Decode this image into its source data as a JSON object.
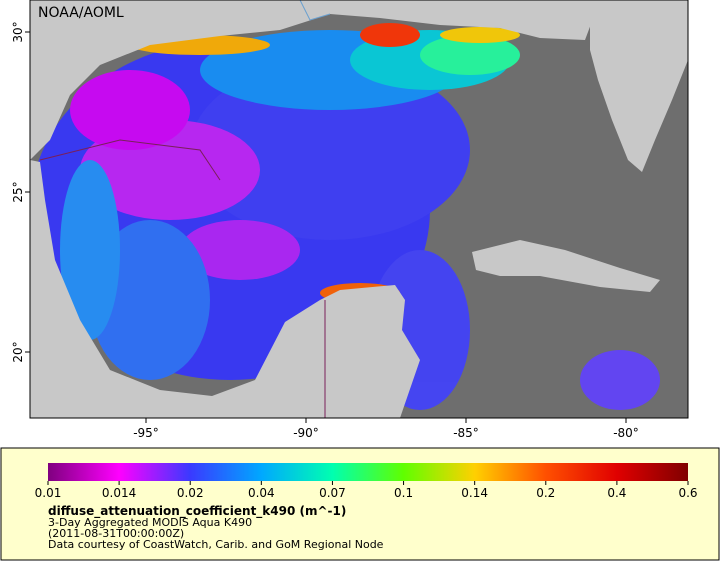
{
  "map": {
    "label": "NOAA/AOML",
    "xlim": [
      -98.625,
      -78.0625
    ],
    "ylim": [
      17.9375,
      31
    ],
    "xticks": [
      {
        "value": -95,
        "label": "-95°"
      },
      {
        "value": -90,
        "label": "-90°"
      },
      {
        "value": -85,
        "label": "-85°"
      },
      {
        "value": -80,
        "label": "-80°"
      }
    ],
    "yticks": [
      {
        "value": 20,
        "label": "20°"
      },
      {
        "value": 25,
        "label": "25°"
      },
      {
        "value": 30,
        "label": "30°"
      }
    ]
  },
  "colorbar": {
    "ticks": [
      0.01,
      0.014,
      0.02,
      0.04,
      0.07,
      0.1,
      0.14,
      0.2,
      0.4,
      0.6
    ],
    "colors": [
      "#7f007f",
      "#ff00ff",
      "#3a3aff",
      "#00a8ff",
      "#00ffb0",
      "#60ff00",
      "#ffd000",
      "#ff5000",
      "#e00000",
      "#800000"
    ]
  },
  "legend": {
    "variable": "diffuse_attenuation_coefficient_k490 (m^-1)",
    "description": "3-Day Aggregated MODIS Aqua K490",
    "time": "(2011-08-31T00:00:00Z)",
    "credit": "Data courtesy of CoastWatch, Carib. and GoM Regional Node"
  }
}
